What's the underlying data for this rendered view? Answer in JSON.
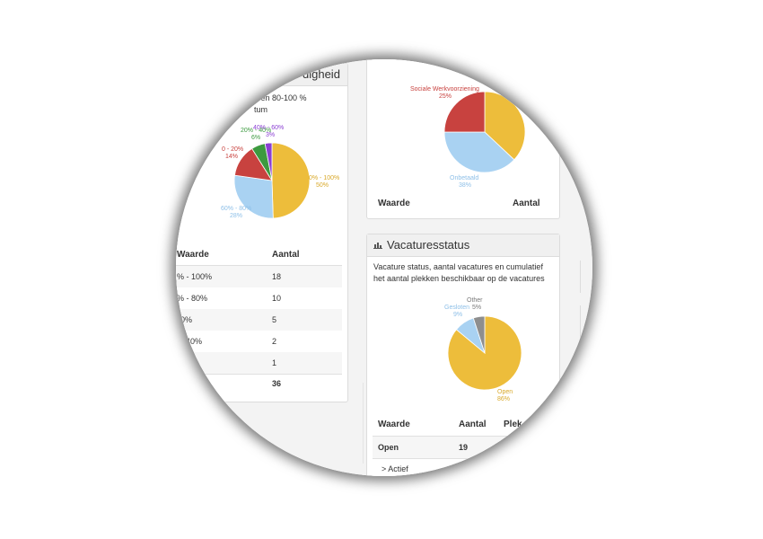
{
  "colors": {
    "yellow": "#EDBD3B",
    "blue": "#A9D2F2",
    "red": "#C8423F",
    "green": "#3C9A3F",
    "purple": "#8A3FD3",
    "gray": "#8E8E8E"
  },
  "left_panel": {
    "title": "digheid",
    "desc_line1": "0 en 80-100 %",
    "desc_line2": "tum",
    "chart_data": {
      "type": "pie",
      "slices": [
        {
          "label": "0% - 100%",
          "pct": "50%",
          "value": 50,
          "color": "yellow"
        },
        {
          "label": "60% - 80%",
          "pct": "28%",
          "value": 28,
          "color": "blue"
        },
        {
          "label": "0 - 20%",
          "pct": "14%",
          "value": 14,
          "color": "red"
        },
        {
          "label": "20% - 40%",
          "pct": "6%",
          "value": 6,
          "color": "green"
        },
        {
          "label": "40% - 60%",
          "pct": "3%",
          "value": 3,
          "color": "purple"
        }
      ]
    },
    "table": {
      "col1": "Waarde",
      "col2": "Aantal",
      "rows": [
        {
          "waarde": "% - 100%",
          "aantal": "18"
        },
        {
          "waarde": "% - 80%",
          "aantal": "10"
        },
        {
          "waarde": "0%",
          "aantal": "5"
        },
        {
          "waarde": "40%",
          "aantal": "2"
        },
        {
          "waarde": "%",
          "aantal": "1"
        }
      ],
      "total": "36"
    }
  },
  "right_top": {
    "chart_data": {
      "type": "pie",
      "slices": [
        {
          "label": "Sociale Werkvoorziening",
          "pct": "25%",
          "value": 25,
          "color": "red"
        },
        {
          "label": "Onbetaald",
          "pct": "38%",
          "value": 38,
          "color": "blue"
        },
        {
          "label": "",
          "pct": "",
          "value": 37,
          "color": "yellow"
        }
      ]
    },
    "col1": "Waarde",
    "col2": "Aantal"
  },
  "vacatures": {
    "title": "Vacaturesstatus",
    "desc_line1": "Vacature status, aantal vacatures en cumulatief",
    "desc_line2": "het aantal plekken beschikbaar op de vacatures",
    "chart_data": {
      "type": "pie",
      "slices": [
        {
          "label": "Open",
          "pct": "86%",
          "value": 86,
          "color": "yellow"
        },
        {
          "label": "Gesloten",
          "pct": "9%",
          "value": 9,
          "color": "blue"
        },
        {
          "label": "Other",
          "pct": "5%",
          "value": 5,
          "color": "gray"
        }
      ]
    },
    "table": {
      "col1": "Waarde",
      "col2": "Aantal",
      "col3": "Plek",
      "row1_waarde": "Open",
      "row1_aantal": "19",
      "row2_waarde": "> Actief"
    }
  }
}
